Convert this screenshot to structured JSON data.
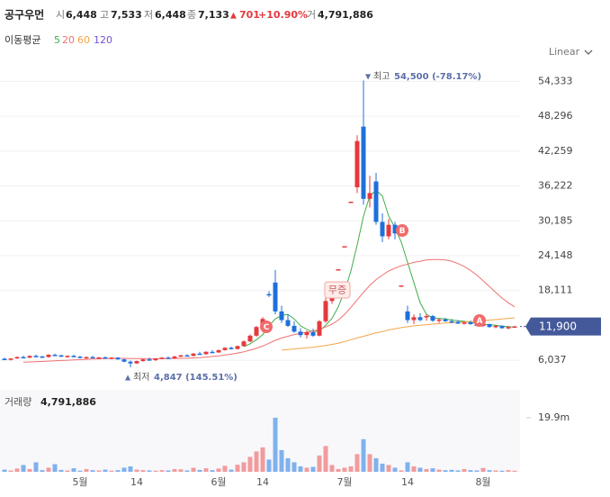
{
  "header": {
    "name": "공구우먼",
    "open_label": "시",
    "open": "6,448",
    "high_label": "고",
    "high": "7,533",
    "low_label": "저",
    "low": "6,448",
    "close_label": "종",
    "close": "7,133",
    "change_mark": "▲",
    "change": "701",
    "change_pct": "+10.90%",
    "volume_label": "거",
    "volume": "4,791,886"
  },
  "scale_selector": "Linear",
  "chart_data": {
    "type": "candlestick",
    "ma_title": "이동평균",
    "categories": [
      null,
      null,
      null,
      null,
      null,
      null,
      null,
      null,
      null,
      null,
      null,
      null,
      "5월",
      null,
      null,
      null,
      null,
      null,
      null,
      null,
      null,
      "14",
      null,
      null,
      null,
      null,
      null,
      null,
      null,
      null,
      null,
      null,
      null,
      null,
      "6월",
      null,
      null,
      null,
      null,
      null,
      null,
      "14",
      null,
      null,
      null,
      null,
      null,
      null,
      null,
      null,
      null,
      null,
      null,
      null,
      "7월",
      null,
      null,
      null,
      null,
      null,
      null,
      null,
      null,
      null,
      "14",
      null,
      null,
      null,
      null,
      null,
      null,
      null,
      null,
      null,
      null,
      null,
      "8월",
      null,
      null,
      null,
      null,
      null
    ],
    "candles": [
      [
        6300,
        6500,
        6100,
        6200
      ],
      [
        6200,
        6400,
        6000,
        6350
      ],
      [
        6350,
        6700,
        6300,
        6600
      ],
      [
        6600,
        6800,
        6400,
        6500
      ],
      [
        6500,
        6900,
        6400,
        6800
      ],
      [
        6800,
        7000,
        6600,
        6700
      ],
      [
        6700,
        6800,
        6500,
        6600
      ],
      [
        6600,
        7100,
        6500,
        7000
      ],
      [
        7000,
        7200,
        6800,
        6900
      ],
      [
        6900,
        7000,
        6600,
        6700
      ],
      [
        6700,
        6900,
        6500,
        6800
      ],
      [
        6800,
        7000,
        6600,
        6650
      ],
      [
        6650,
        6800,
        6400,
        6500
      ],
      [
        6500,
        6700,
        6300,
        6600
      ],
      [
        6600,
        6800,
        6400,
        6450
      ],
      [
        6450,
        6600,
        6200,
        6550
      ],
      [
        6550,
        6700,
        6300,
        6400
      ],
      [
        6400,
        6600,
        6200,
        6500
      ],
      [
        6500,
        6600,
        6100,
        6200
      ],
      [
        6200,
        6300,
        5700,
        5800
      ],
      [
        5800,
        6000,
        4847,
        5500
      ],
      [
        5500,
        6000,
        5400,
        5900
      ],
      [
        5900,
        6300,
        5800,
        6200
      ],
      [
        6200,
        6500,
        6000,
        6100
      ],
      [
        6100,
        6400,
        5900,
        6300
      ],
      [
        6300,
        6600,
        6200,
        6500
      ],
      [
        6500,
        6700,
        6300,
        6400
      ],
      [
        6400,
        6800,
        6300,
        6700
      ],
      [
        6700,
        7000,
        6600,
        6900
      ],
      [
        6900,
        7100,
        6700,
        6800
      ],
      [
        6800,
        7300,
        6700,
        7200
      ],
      [
        7200,
        7500,
        7000,
        7100
      ],
      [
        7100,
        7600,
        7000,
        7500
      ],
      [
        7500,
        7800,
        7300,
        7400
      ],
      [
        7400,
        7900,
        7300,
        7800
      ],
      [
        7800,
        8300,
        7700,
        8200
      ],
      [
        8200,
        8400,
        7900,
        8000
      ],
      [
        8000,
        8600,
        7900,
        8500
      ],
      [
        8500,
        9500,
        8400,
        9300
      ],
      [
        9300,
        10500,
        9200,
        10300
      ],
      [
        10300,
        12000,
        10100,
        11800
      ],
      [
        11800,
        13500,
        11600,
        13200
      ],
      [
        17500,
        18000,
        17000,
        17400
      ],
      [
        19500,
        21700,
        14000,
        14500
      ],
      [
        14500,
        15500,
        12500,
        13000
      ],
      [
        13000,
        14000,
        11800,
        12000
      ],
      [
        12000,
        12800,
        10800,
        11000
      ],
      [
        11000,
        11600,
        10000,
        10400
      ],
      [
        10400,
        11200,
        9800,
        10900
      ],
      [
        10900,
        11500,
        10100,
        10300
      ],
      [
        10300,
        13000,
        10200,
        12800
      ],
      [
        12800,
        16800,
        12500,
        16300
      ],
      [
        16300,
        17000,
        15800,
        16800
      ],
      [
        21800,
        21800,
        21800,
        21800
      ],
      [
        25800,
        25800,
        25800,
        25800
      ],
      [
        33500,
        33500,
        33500,
        33500
      ],
      [
        36000,
        45000,
        35000,
        44000
      ],
      [
        46500,
        54500,
        33000,
        34000
      ],
      [
        34000,
        38000,
        32500,
        35000
      ],
      [
        37000,
        38500,
        29500,
        30000
      ],
      [
        30000,
        31500,
        26500,
        27500
      ],
      [
        27500,
        30500,
        27000,
        29500
      ],
      [
        29500,
        30000,
        27000,
        28000
      ],
      [
        19000,
        19000,
        19000,
        19000
      ],
      [
        14500,
        15500,
        12500,
        13000
      ],
      [
        13000,
        14000,
        12300,
        13500
      ],
      [
        13500,
        14200,
        12800,
        13000
      ],
      [
        13500,
        14000,
        12900,
        13700
      ],
      [
        13700,
        13900,
        12700,
        12900
      ],
      [
        12900,
        13300,
        12500,
        13100
      ],
      [
        13100,
        13400,
        12700,
        12800
      ],
      [
        12800,
        13200,
        12500,
        12700
      ],
      [
        12700,
        13000,
        12300,
        12400
      ],
      [
        12400,
        12800,
        12200,
        12600
      ],
      [
        12600,
        12900,
        12200,
        12300
      ],
      [
        12300,
        12600,
        11900,
        12000
      ],
      [
        12000,
        12500,
        11800,
        12300
      ],
      [
        12300,
        12400,
        11700,
        11800
      ],
      [
        11800,
        12200,
        11600,
        12000
      ],
      [
        12000,
        12100,
        11500,
        11600
      ],
      [
        11600,
        12000,
        11400,
        11800
      ],
      [
        11800,
        12000,
        11700,
        11900
      ]
    ],
    "up_color": "#e5393e",
    "down_color": "#1f6fdc",
    "moving_averages": [
      {
        "name": "5",
        "color": "#3fae49",
        "values": [
          null,
          null,
          null,
          null,
          null,
          null,
          null,
          null,
          null,
          null,
          null,
          null,
          null,
          null,
          null,
          null,
          null,
          null,
          null,
          null,
          null,
          null,
          null,
          null,
          null,
          null,
          null,
          null,
          null,
          null,
          null,
          null,
          null,
          null,
          null,
          null,
          null,
          null,
          8400,
          8900,
          9600,
          10500,
          12000,
          13200,
          13800,
          14000,
          13200,
          12000,
          11400,
          11000,
          11100,
          12100,
          13300,
          15300,
          18000,
          21500,
          26000,
          31000,
          34500,
          35500,
          34500,
          31000,
          29000,
          26500,
          23000,
          19500,
          16000,
          14000,
          13400,
          13300,
          13200,
          13000,
          12900,
          12800,
          12600,
          12500,
          12300,
          12200,
          12100,
          11950,
          11850,
          11800
        ]
      },
      {
        "name": "20",
        "color": "#f07070",
        "values": [
          null,
          null,
          null,
          5700,
          5750,
          5800,
          5850,
          5900,
          5950,
          6000,
          6050,
          6100,
          6150,
          6200,
          6250,
          6300,
          6330,
          6360,
          6380,
          6380,
          6350,
          6340,
          6330,
          6320,
          6320,
          6330,
          6340,
          6360,
          6380,
          6400,
          6450,
          6500,
          6600,
          6700,
          6800,
          6950,
          7100,
          7300,
          7500,
          7800,
          8100,
          8500,
          9000,
          9500,
          9900,
          10200,
          10500,
          10700,
          10900,
          11100,
          11400,
          11800,
          12300,
          13000,
          14000,
          15200,
          16500,
          17800,
          19000,
          20000,
          20800,
          21500,
          22000,
          22400,
          22700,
          23000,
          23200,
          23400,
          23500,
          23500,
          23400,
          23200,
          22800,
          22300,
          21600,
          20800,
          19800,
          18800,
          17800,
          16800,
          16000,
          15300
        ]
      },
      {
        "name": "60",
        "color": "#f3a64a",
        "values": [
          null,
          null,
          null,
          null,
          null,
          null,
          null,
          null,
          null,
          null,
          null,
          null,
          null,
          null,
          null,
          null,
          null,
          null,
          null,
          null,
          null,
          null,
          null,
          null,
          null,
          null,
          null,
          null,
          null,
          null,
          null,
          null,
          null,
          null,
          null,
          null,
          null,
          null,
          null,
          null,
          null,
          null,
          null,
          null,
          7800,
          7900,
          8000,
          8100,
          8200,
          8300,
          8450,
          8600,
          8800,
          9000,
          9300,
          9600,
          9900,
          10200,
          10500,
          10800,
          11000,
          11300,
          11500,
          11700,
          11850,
          12000,
          12100,
          12200,
          12300,
          12400,
          12500,
          12550,
          12600,
          12700,
          12750,
          12800,
          12900,
          13000,
          13100,
          13200,
          13300,
          13400
        ]
      },
      {
        "name": "120",
        "color": "#7a4fd8"
      }
    ],
    "ylim": [
      1700,
      57200
    ],
    "yticks": [
      {
        "value": 6037,
        "label": "6,037"
      },
      {
        "value": 18111,
        "label": "18,111"
      },
      {
        "value": 24148,
        "label": "24,148"
      },
      {
        "value": 30185,
        "label": "30,185"
      },
      {
        "value": 36222,
        "label": "36,222"
      },
      {
        "value": 42259,
        "label": "42,259"
      },
      {
        "value": 48296,
        "label": "48,296"
      },
      {
        "value": 54333,
        "label": "54,333"
      }
    ],
    "grid": true,
    "last_price": {
      "value": 11900,
      "label": "11,900"
    },
    "high_annotation": {
      "mark": "▼",
      "label": "최고",
      "text": "54,500 (-78.17%)"
    },
    "low_annotation": {
      "mark": "▲",
      "label": "최저",
      "text": "4,847 (145.51%)"
    },
    "event_markers": [
      "C",
      "B",
      "A",
      "무증"
    ],
    "volume_title": "거래량",
    "volume_text": "4,791,886",
    "volumes": [
      800000,
      500000,
      1200000,
      2500000,
      1000000,
      3500000,
      600000,
      1500000,
      2800000,
      700000,
      500000,
      1300000,
      400000,
      1000000,
      600000,
      500000,
      800000,
      400000,
      600000,
      1500000,
      2000000,
      800000,
      600000,
      500000,
      400000,
      600000,
      500000,
      1000000,
      900000,
      500000,
      1500000,
      700000,
      1300000,
      600000,
      1200000,
      2200000,
      800000,
      2600000,
      3500000,
      5500000,
      7500000,
      9000000,
      4500000,
      19900000,
      8000000,
      5000000,
      3500000,
      2000000,
      1500000,
      1800000,
      6000000,
      9500000,
      2500000,
      1000000,
      1500000,
      2000000,
      6500000,
      12000000,
      6500000,
      5000000,
      3000000,
      2500000,
      1500000,
      500000,
      3500000,
      2000000,
      1500000,
      1000000,
      1300000,
      800000,
      600000,
      700000,
      500000,
      1000000,
      600000,
      500000,
      1400000,
      600000,
      500000,
      400000,
      600000,
      400000
    ],
    "vlim": [
      0,
      29500000
    ],
    "vticks": [
      {
        "value": 19900000,
        "label": "19.9m"
      }
    ]
  }
}
